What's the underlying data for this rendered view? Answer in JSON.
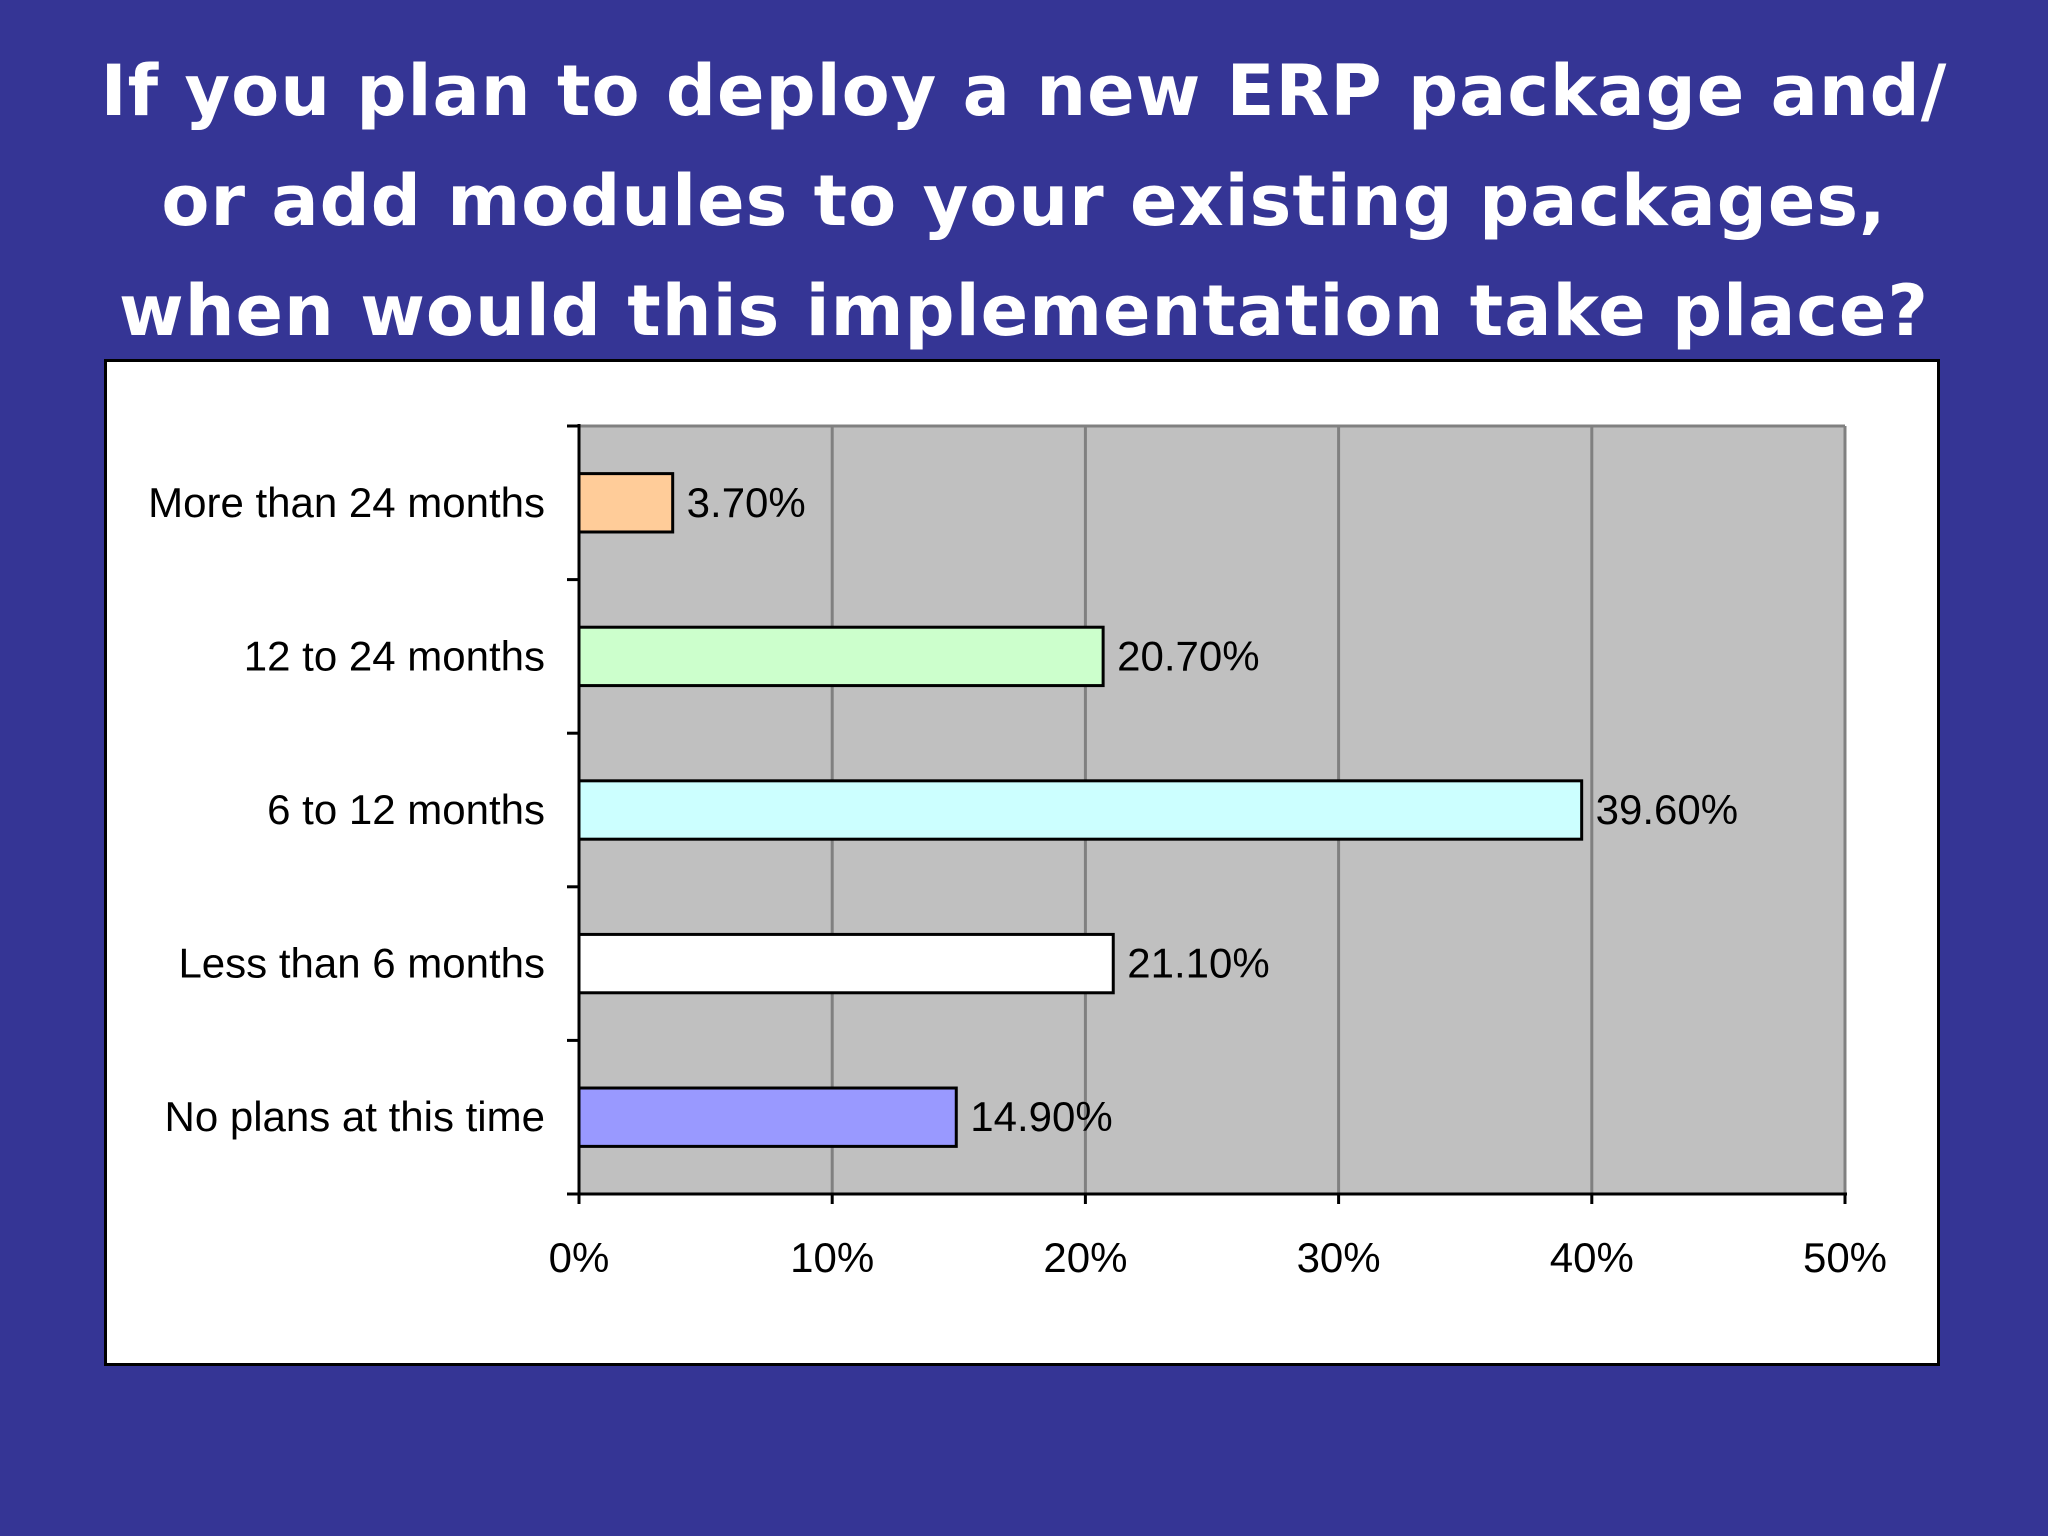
{
  "slide": {
    "title_lines": [
      "If you plan to deploy a new ERP package and/",
      "or add modules to your existing packages,",
      "when would this implementation take place?"
    ],
    "background_color": "#353595",
    "title_color": "#ffffff"
  },
  "chart_data": {
    "type": "bar",
    "orientation": "horizontal",
    "title": "",
    "xlabel": "",
    "ylabel": "",
    "categories": [
      "More than 24 months",
      "12 to 24 months",
      "6 to 12 months",
      "Less than 6 months",
      "No plans at this time"
    ],
    "values": [
      3.7,
      20.7,
      39.6,
      21.1,
      14.9
    ],
    "value_labels": [
      "3.70%",
      "20.70%",
      "39.60%",
      "21.10%",
      "14.90%"
    ],
    "bar_colors": [
      "#FFCC99",
      "#CCFFCC",
      "#CCFFFF",
      "#FFFFFF",
      "#9999FF"
    ],
    "xlim": [
      0,
      50
    ],
    "x_ticks": [
      0,
      10,
      20,
      30,
      40,
      50
    ],
    "x_tick_labels": [
      "0%",
      "10%",
      "20%",
      "30%",
      "40%",
      "50%"
    ],
    "grid": true,
    "plot_background": "#C0C0C0",
    "gridline_color": "#808080",
    "legend": "none"
  }
}
